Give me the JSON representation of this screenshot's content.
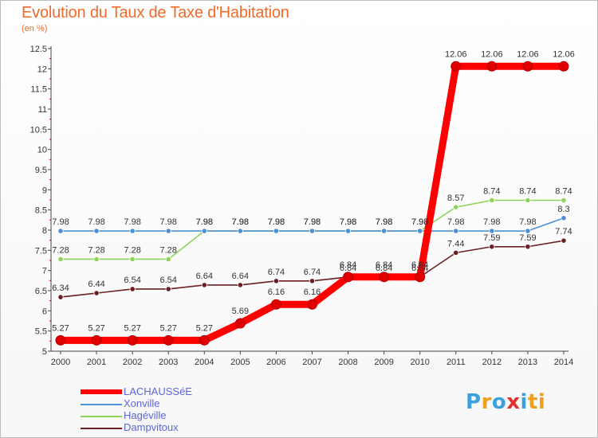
{
  "title": "Evolution du Taux de Taxe d'Habitation",
  "subtitle": "(en %)",
  "brand": {
    "text": "Proxiti",
    "colors": [
      "#3aa0e0",
      "#f0a020",
      "#3aa0e0",
      "#e03030",
      "#3aa0e0",
      "#f0a020",
      "#f0a020"
    ]
  },
  "chart_data": {
    "type": "line",
    "x": [
      2000,
      2001,
      2002,
      2003,
      2004,
      2005,
      2006,
      2007,
      2008,
      2009,
      2010,
      2011,
      2012,
      2013,
      2014
    ],
    "ylim": [
      5,
      12.5
    ],
    "yticks": [
      "5",
      "5.5",
      "6",
      "6.5",
      "7",
      "7.5",
      "8",
      "8.5",
      "9",
      "9.5",
      "10",
      "10.5",
      "11",
      "11.5",
      "12",
      "12.5"
    ],
    "grid": false,
    "legend_position": "bottom-left",
    "series": [
      {
        "name": "LACHAUSSéE",
        "color": "#ff0000",
        "values": [
          5.27,
          5.27,
          5.27,
          5.27,
          5.27,
          5.69,
          6.16,
          6.16,
          6.84,
          6.84,
          6.84,
          12.06,
          12.06,
          12.06,
          12.06
        ],
        "labels": [
          "5.27",
          "5.27",
          "5.27",
          "5.27",
          "5.27",
          "5.69",
          "6.16",
          "6.16",
          "6.84",
          "6.84",
          "6.84",
          "12.06",
          "12.06",
          "12.06",
          "12.06"
        ]
      },
      {
        "name": "Xonville",
        "color": "#4a90d9",
        "values": [
          7.98,
          7.98,
          7.98,
          7.98,
          7.98,
          7.98,
          7.98,
          7.98,
          7.98,
          7.98,
          7.98,
          7.98,
          7.98,
          7.98,
          8.3
        ],
        "labels": [
          "7.98",
          "7.98",
          "7.98",
          "7.98",
          "7.98",
          "7.98",
          "7.98",
          "7.98",
          "7.98",
          "7.98",
          "7.98",
          "7.98",
          "7.98",
          "7.98",
          "8.3"
        ]
      },
      {
        "name": "Hagéville",
        "color": "#8ed45a",
        "values": [
          7.28,
          7.28,
          7.28,
          7.28,
          7.98,
          7.98,
          7.98,
          7.98,
          7.98,
          7.98,
          7.98,
          8.57,
          8.74,
          8.74,
          8.74
        ],
        "labels": [
          "7.28",
          "7.28",
          "7.28",
          "7.28",
          "7.98",
          "7.98",
          "7.98",
          "7.98",
          "7.98",
          "7.98",
          "7.98",
          "8.57",
          "8.74",
          "8.74",
          "8.74"
        ]
      },
      {
        "name": "Dampvitoux",
        "color": "#6b1f22",
        "values": [
          6.34,
          6.44,
          6.54,
          6.54,
          6.64,
          6.64,
          6.74,
          6.74,
          6.84,
          6.84,
          6.84,
          7.44,
          7.59,
          7.59,
          7.74
        ],
        "labels": [
          "6.34",
          "6.44",
          "6.54",
          "6.54",
          "6.64",
          "6.64",
          "6.74",
          "6.74",
          "6.84",
          "6.84",
          "6.84",
          "7.44",
          "7.59",
          "7.59",
          "7.74"
        ]
      }
    ]
  }
}
